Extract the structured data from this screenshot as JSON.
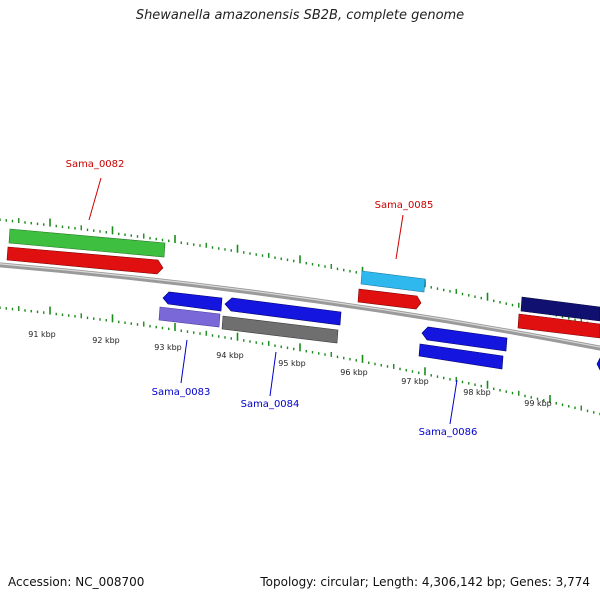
{
  "title": "Shewanella amazonensis SB2B, complete genome",
  "footer": {
    "accession": "Accession: NC_008700",
    "summary": "Topology: circular; Length: 4,306,142 bp; Genes: 3,774"
  },
  "tick_labels": [
    "91 kbp",
    "92 kbp",
    "93 kbp",
    "94 kbp",
    "95 kbp",
    "96 kbp",
    "97 kbp",
    "98 kbp",
    "99 kbp"
  ],
  "genes": [
    {
      "name": "Sama_0082",
      "strand": "forward",
      "color": "#e01010",
      "label_color": "#cc0000"
    },
    {
      "name": "Sama_0083",
      "strand": "reverse",
      "color": "#1515e0",
      "label_color": "#0000cc"
    },
    {
      "name": "Sama_0084",
      "strand": "reverse",
      "color": "#1515e0",
      "label_color": "#0000cc"
    },
    {
      "name": "Sama_0085",
      "strand": "forward",
      "color": "#e01010",
      "label_color": "#cc0000"
    },
    {
      "name": "Sama_0086",
      "strand": "reverse",
      "color": "#1515e0",
      "label_color": "#0000cc"
    }
  ],
  "colors": {
    "backbone": "#808080",
    "ticks": "#1a8a1a",
    "tick_text": "#222222"
  }
}
